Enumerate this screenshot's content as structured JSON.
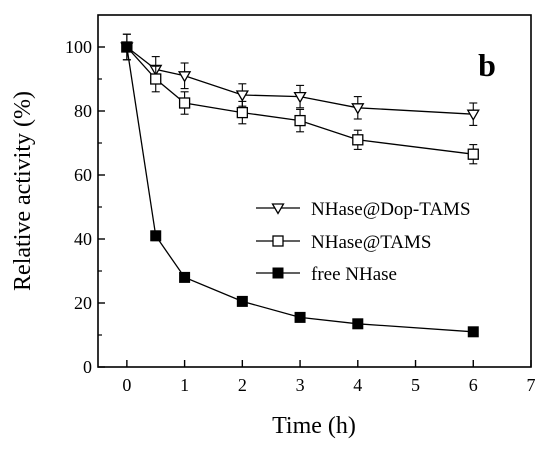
{
  "chart_data": {
    "type": "line",
    "panel_label": "b",
    "xlabel": "Time (h)",
    "ylabel": "Relative activity (%)",
    "xlim": [
      -0.5,
      7
    ],
    "ylim": [
      0,
      110
    ],
    "xticks": [
      0,
      1,
      2,
      3,
      4,
      5,
      6,
      7
    ],
    "yticks": [
      0,
      20,
      40,
      60,
      80,
      100
    ],
    "legend_position": "center-right",
    "series": [
      {
        "name": "NHase@Dop-TAMS",
        "marker": "triangle-down-open",
        "x": [
          0,
          0.5,
          1,
          2,
          3,
          4,
          6
        ],
        "y": [
          100,
          93,
          91,
          85,
          84.5,
          81,
          79
        ],
        "error": [
          4,
          4,
          4,
          3.5,
          3.5,
          3.5,
          3.5
        ]
      },
      {
        "name": "NHase@TAMS",
        "marker": "square-open",
        "x": [
          0,
          0.5,
          1,
          2,
          3,
          4,
          6
        ],
        "y": [
          100,
          90,
          82.5,
          79.5,
          77,
          71,
          66.5
        ],
        "error": [
          4,
          4,
          3.5,
          3.5,
          3.5,
          3,
          3
        ]
      },
      {
        "name": "free NHase",
        "marker": "square-filled",
        "x": [
          0,
          0.5,
          1,
          2,
          3,
          4,
          6
        ],
        "y": [
          100,
          41,
          28,
          20.5,
          15.5,
          13.5,
          11
        ],
        "error": [
          0,
          1.5,
          0,
          0,
          0,
          0,
          0
        ]
      }
    ]
  }
}
